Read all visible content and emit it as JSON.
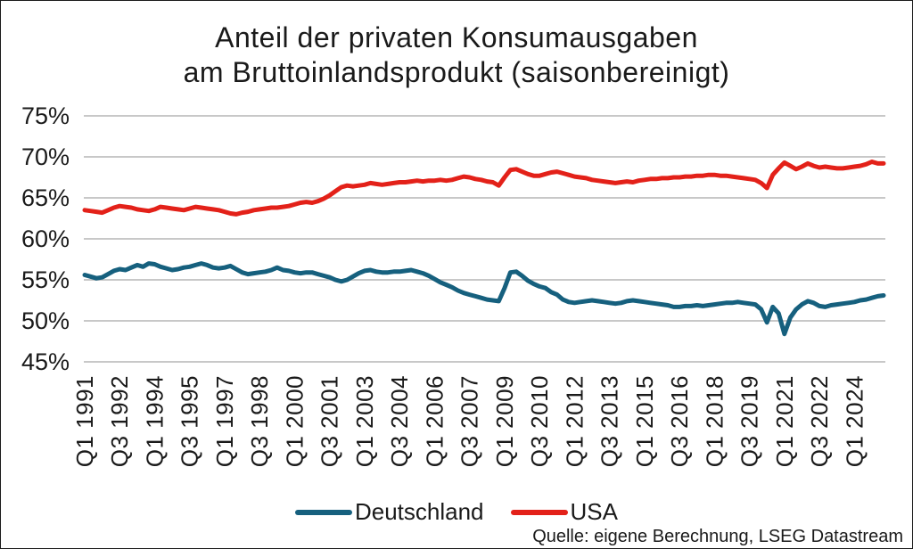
{
  "title": {
    "line1": "Anteil der privaten Konsumausgaben",
    "line2": "am Bruttoinlandsprodukt (saisonbereinigt)"
  },
  "legend": {
    "items": [
      {
        "label": "Deutschland",
        "color": "#16607e"
      },
      {
        "label": "USA",
        "color": "#e32119"
      }
    ]
  },
  "source": "Quelle: eigene Berechnung, LSEG Datastream",
  "colors": {
    "deutschland": "#16607e",
    "usa": "#e32119",
    "gridline": "#c8c8c8",
    "text": "#1a1a1a",
    "background": "#ffffff"
  },
  "chart_data": {
    "type": "line",
    "title": "Anteil der privaten Konsumausgaben am Bruttoinlandsprodukt (saisonbereinigt)",
    "x_unit": "quarter",
    "x_start": "Q1 1991",
    "x_end": "Q2 2025",
    "x_tick_step_quarters": 6,
    "x_tick_labels": [
      "Q1 1991",
      "Q3 1992",
      "Q1 1994",
      "Q3 1995",
      "Q1 1997",
      "Q3 1998",
      "Q1 2000",
      "Q3 2001",
      "Q1 2003",
      "Q3 2004",
      "Q1 2006",
      "Q3 2007",
      "Q1 2009",
      "Q3 2010",
      "Q1 2012",
      "Q3 2013",
      "Q1 2015",
      "Q3 2016",
      "Q1 2018",
      "Q3 2019",
      "Q1 2021",
      "Q3 2022",
      "Q1 2024"
    ],
    "y_ticks": [
      45,
      50,
      55,
      60,
      65,
      70,
      75
    ],
    "y_tick_suffix": "%",
    "ylim": [
      45,
      75
    ],
    "grid": "horizontal",
    "legend_position": "bottom",
    "series": [
      {
        "name": "Deutschland",
        "color": "#16607e",
        "values": [
          55.6,
          55.4,
          55.2,
          55.3,
          55.7,
          56.1,
          56.3,
          56.2,
          56.5,
          56.8,
          56.6,
          57.0,
          56.9,
          56.6,
          56.4,
          56.2,
          56.3,
          56.5,
          56.6,
          56.8,
          57.0,
          56.8,
          56.5,
          56.4,
          56.5,
          56.7,
          56.3,
          55.9,
          55.7,
          55.8,
          55.9,
          56.0,
          56.2,
          56.5,
          56.2,
          56.1,
          55.9,
          55.8,
          55.9,
          55.9,
          55.7,
          55.5,
          55.3,
          55.0,
          54.8,
          55.0,
          55.4,
          55.8,
          56.1,
          56.2,
          56.0,
          55.9,
          55.9,
          56.0,
          56.0,
          56.1,
          56.2,
          56.0,
          55.8,
          55.5,
          55.1,
          54.7,
          54.4,
          54.1,
          53.7,
          53.4,
          53.2,
          53.0,
          52.8,
          52.6,
          52.5,
          52.4,
          54.0,
          55.9,
          56.0,
          55.5,
          54.9,
          54.5,
          54.2,
          54.0,
          53.5,
          53.2,
          52.6,
          52.3,
          52.2,
          52.3,
          52.4,
          52.5,
          52.4,
          52.3,
          52.2,
          52.1,
          52.2,
          52.4,
          52.5,
          52.4,
          52.3,
          52.2,
          52.1,
          52.0,
          51.9,
          51.7,
          51.7,
          51.8,
          51.8,
          51.9,
          51.8,
          51.9,
          52.0,
          52.1,
          52.2,
          52.2,
          52.3,
          52.2,
          52.1,
          52.0,
          51.4,
          49.8,
          51.7,
          50.9,
          48.4,
          50.4,
          51.4,
          52.0,
          52.4,
          52.2,
          51.8,
          51.7,
          51.9,
          52.0,
          52.1,
          52.2,
          52.3,
          52.5,
          52.6,
          52.8,
          53.0,
          53.1
        ]
      },
      {
        "name": "USA",
        "color": "#e32119",
        "values": [
          63.5,
          63.4,
          63.3,
          63.2,
          63.5,
          63.8,
          64.0,
          63.9,
          63.8,
          63.6,
          63.5,
          63.4,
          63.6,
          63.9,
          63.8,
          63.7,
          63.6,
          63.5,
          63.7,
          63.9,
          63.8,
          63.7,
          63.6,
          63.5,
          63.3,
          63.1,
          63.0,
          63.2,
          63.3,
          63.5,
          63.6,
          63.7,
          63.8,
          63.8,
          63.9,
          64.0,
          64.2,
          64.4,
          64.5,
          64.4,
          64.6,
          64.9,
          65.3,
          65.8,
          66.3,
          66.5,
          66.4,
          66.5,
          66.6,
          66.8,
          66.7,
          66.6,
          66.7,
          66.8,
          66.9,
          66.9,
          67.0,
          67.1,
          67.0,
          67.1,
          67.1,
          67.2,
          67.1,
          67.2,
          67.4,
          67.6,
          67.5,
          67.3,
          67.2,
          67.0,
          66.9,
          66.5,
          67.5,
          68.4,
          68.5,
          68.2,
          67.9,
          67.7,
          67.7,
          67.9,
          68.1,
          68.2,
          68.0,
          67.8,
          67.6,
          67.5,
          67.4,
          67.2,
          67.1,
          67.0,
          66.9,
          66.8,
          66.9,
          67.0,
          66.9,
          67.1,
          67.2,
          67.3,
          67.3,
          67.4,
          67.4,
          67.5,
          67.5,
          67.6,
          67.6,
          67.7,
          67.7,
          67.8,
          67.8,
          67.7,
          67.7,
          67.6,
          67.5,
          67.4,
          67.3,
          67.2,
          66.8,
          66.2,
          67.8,
          68.6,
          69.3,
          68.9,
          68.5,
          68.8,
          69.2,
          68.9,
          68.7,
          68.8,
          68.7,
          68.6,
          68.6,
          68.7,
          68.8,
          68.9,
          69.1,
          69.4,
          69.2,
          69.2
        ]
      }
    ]
  }
}
